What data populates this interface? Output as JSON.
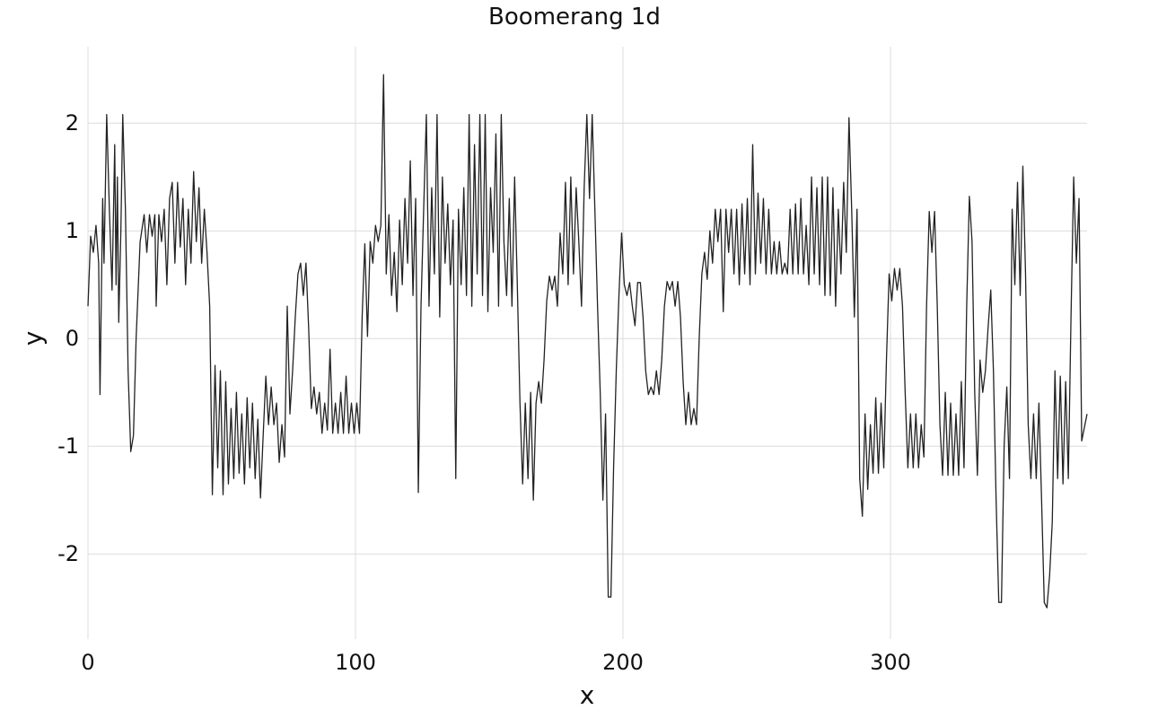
{
  "chart_data": {
    "type": "line",
    "title": "Boomerang 1d",
    "x_label": "x",
    "y_label": "y",
    "color": "#222222",
    "grid": true,
    "xlim": [
      0,
      373.5
    ],
    "ylim": [
      -2.79,
      2.71
    ],
    "xticks": [
      0,
      100,
      200,
      300
    ],
    "yticks": [
      -2,
      -1,
      0,
      1,
      2
    ],
    "x": [
      0,
      1,
      2,
      3,
      4,
      4.5,
      5.5,
      6,
      7,
      8,
      9,
      10,
      10.5,
      11,
      11.5,
      12.3,
      13,
      14,
      15,
      16,
      17,
      18,
      19.5,
      21,
      22,
      23,
      24,
      25,
      25.5,
      26.5,
      27.5,
      28.5,
      29.5,
      30.5,
      31.5,
      32.5,
      33.5,
      34.5,
      35.5,
      36.5,
      37.5,
      38.5,
      39.5,
      40.5,
      41.5,
      42.5,
      43.5,
      44.5,
      45.5,
      46.5,
      47.5,
      48.5,
      49.5,
      50.5,
      51.5,
      52.5,
      53.5,
      54.5,
      55.5,
      56.5,
      57.5,
      58.5,
      59.5,
      60.5,
      61.5,
      62.5,
      63.5,
      64.5,
      65.5,
      66.5,
      67.5,
      68.5,
      69.5,
      70.5,
      71.5,
      72.5,
      73.5,
      74.5,
      75.5,
      76.5,
      77.5,
      78.5,
      79.5,
      80.5,
      81.5,
      82.5,
      83.5,
      84.5,
      85.5,
      86.5,
      87.5,
      88.5,
      89.5,
      90.5,
      91.5,
      92.5,
      93.5,
      94.5,
      95.5,
      96.5,
      97.5,
      98.5,
      99.5,
      100.5,
      101.5,
      102.5,
      103.5,
      104.5,
      105.5,
      106.5,
      107.5,
      108.5,
      109.5,
      110.5,
      111.5,
      112.5,
      113.5,
      114.5,
      115.5,
      116.5,
      117.5,
      118.5,
      119.5,
      120.5,
      121.5,
      122.5,
      123.5,
      124.5,
      125.5,
      126.5,
      127.5,
      128.5,
      129.5,
      130.5,
      131.5,
      132.5,
      133.5,
      134.5,
      135.5,
      136.5,
      137.5,
      138.5,
      139.5,
      140.5,
      141.5,
      142.5,
      143.5,
      144.5,
      145.5,
      146.5,
      147.5,
      148.5,
      149.5,
      150.5,
      151.5,
      152.5,
      153.5,
      154.5,
      155.5,
      156.5,
      157.5,
      158.5,
      159.5,
      160.5,
      161.5,
      162.5,
      163.5,
      164.5,
      165.5,
      166.5,
      167.5,
      168.5,
      169.5,
      170.5,
      171.5,
      172.5,
      173.5,
      174.5,
      175.5,
      176.5,
      177.5,
      178.5,
      179.5,
      180.5,
      181.5,
      182.5,
      183.5,
      184.5,
      185.5,
      186.5,
      187.5,
      188.5,
      189.5,
      190.5,
      191.5,
      192.5,
      193.5,
      194.5,
      195.5,
      196.5,
      197.5,
      198.5,
      199.5,
      200.5,
      201.5,
      202.5,
      203.5,
      204.5,
      205.5,
      206.5,
      207.5,
      208.5,
      209.5,
      210.5,
      211.5,
      212.5,
      213.5,
      214.5,
      215.5,
      216.5,
      217.5,
      218.5,
      219.5,
      220.5,
      221.5,
      222.5,
      223.5,
      224.5,
      225.5,
      226.5,
      227.5,
      228.5,
      229.5,
      230.5,
      231.5,
      232.5,
      233.5,
      234.5,
      235.5,
      236.5,
      237.5,
      238.5,
      239.5,
      240.5,
      241.5,
      242.5,
      243.5,
      244.5,
      245.5,
      246.5,
      247.5,
      248.5,
      249.5,
      250.5,
      251.5,
      252.5,
      253.5,
      254.5,
      255.5,
      256.5,
      257.5,
      258.5,
      259.5,
      260.5,
      261.5,
      262.5,
      263.5,
      264.5,
      265.5,
      266.5,
      267.5,
      268.5,
      269.5,
      270.5,
      271.5,
      272.5,
      273.5,
      274.5,
      275.5,
      276.5,
      277.5,
      278.5,
      279.5,
      280.5,
      281.5,
      282.5,
      283.5,
      284.5,
      285.5,
      286.5,
      287.5,
      288.5,
      289.5,
      290.5,
      291.5,
      292.5,
      293.5,
      294.5,
      295.5,
      296.5,
      297.5,
      298.5,
      299.5,
      300.5,
      301.5,
      302.5,
      303.5,
      304.5,
      305.5,
      306.5,
      307.5,
      308.5,
      309.5,
      310.5,
      311.5,
      312.5,
      313.5,
      314.5,
      315.5,
      316.5,
      317.5,
      318.5,
      319.5,
      320.5,
      321.5,
      322.5,
      323.5,
      324.5,
      325.5,
      326.5,
      327.5,
      328.5,
      329.5,
      330.5,
      331.5,
      332.5,
      333.5,
      334.5,
      335.5,
      336.5,
      337.5,
      338.5,
      339.5,
      340.5,
      341.5,
      342.5,
      343.5,
      344.5,
      345.5,
      346.5,
      347.5,
      348.5,
      349.5,
      350.5,
      351.5,
      352.5,
      353.5,
      354.5,
      355.5,
      356.5,
      357.5,
      358.5,
      359.5,
      360.5,
      361.5,
      362.5,
      363.5,
      364.5,
      365.5,
      366.5,
      367.5,
      368.5,
      369.5,
      370.5,
      371.5,
      373.5
    ],
    "values": [
      0.3,
      0.95,
      0.8,
      1.05,
      0.7,
      -0.52,
      1.3,
      0.7,
      2.08,
      1.2,
      0.45,
      1.8,
      0.5,
      1.5,
      0.15,
      1.0,
      2.08,
      1.2,
      -0.3,
      -1.05,
      -0.9,
      0.0,
      0.9,
      1.15,
      0.8,
      1.15,
      0.95,
      1.15,
      0.3,
      1.15,
      0.9,
      1.2,
      0.5,
      1.3,
      1.45,
      0.7,
      1.45,
      0.85,
      1.3,
      0.5,
      1.2,
      0.7,
      1.55,
      0.9,
      1.4,
      0.7,
      1.2,
      0.8,
      0.3,
      -1.45,
      -0.25,
      -1.2,
      -0.3,
      -1.45,
      -0.4,
      -1.35,
      -0.65,
      -1.3,
      -0.5,
      -1.25,
      -0.7,
      -1.35,
      -0.55,
      -1.2,
      -0.6,
      -1.3,
      -0.75,
      -1.48,
      -0.9,
      -0.35,
      -0.8,
      -0.45,
      -0.8,
      -0.6,
      -1.15,
      -0.8,
      -1.1,
      0.3,
      -0.7,
      -0.3,
      0.2,
      0.6,
      0.7,
      0.4,
      0.7,
      0.1,
      -0.65,
      -0.45,
      -0.7,
      -0.5,
      -0.88,
      -0.6,
      -0.85,
      -0.1,
      -0.88,
      -0.6,
      -0.88,
      -0.5,
      -0.88,
      -0.35,
      -0.88,
      -0.6,
      -0.88,
      -0.6,
      -0.88,
      0.2,
      0.88,
      0.02,
      0.9,
      0.7,
      1.05,
      0.9,
      1.05,
      2.45,
      0.6,
      1.15,
      0.4,
      0.8,
      0.25,
      1.1,
      0.5,
      1.3,
      0.7,
      1.65,
      0.4,
      1.3,
      -1.43,
      0.3,
      1.2,
      2.08,
      0.3,
      1.4,
      0.6,
      2.08,
      0.2,
      1.5,
      0.7,
      1.25,
      0.5,
      1.1,
      -1.3,
      1.2,
      0.5,
      1.4,
      0.4,
      2.08,
      0.3,
      1.8,
      0.6,
      2.08,
      0.4,
      2.08,
      0.25,
      1.4,
      0.8,
      1.9,
      0.3,
      2.08,
      0.9,
      0.4,
      1.3,
      0.3,
      1.5,
      0.5,
      -0.6,
      -1.35,
      -0.6,
      -1.3,
      -0.5,
      -1.5,
      -0.6,
      -0.4,
      -0.6,
      -0.2,
      0.35,
      0.58,
      0.45,
      0.58,
      0.3,
      0.98,
      0.6,
      1.45,
      0.5,
      1.5,
      0.6,
      1.4,
      0.9,
      0.3,
      1.4,
      2.08,
      1.3,
      2.08,
      1.2,
      0.3,
      -0.5,
      -1.5,
      -0.7,
      -2.4,
      -2.4,
      -1.2,
      -0.3,
      0.4,
      0.98,
      0.5,
      0.4,
      0.52,
      0.3,
      0.12,
      0.52,
      0.52,
      0.2,
      -0.3,
      -0.52,
      -0.45,
      -0.52,
      -0.3,
      -0.52,
      -0.2,
      0.3,
      0.53,
      0.45,
      0.53,
      0.3,
      0.53,
      0.2,
      -0.4,
      -0.8,
      -0.5,
      -0.8,
      -0.65,
      -0.8,
      0.0,
      0.6,
      0.8,
      0.55,
      1.0,
      0.7,
      1.2,
      0.9,
      1.2,
      0.25,
      1.2,
      0.8,
      1.2,
      0.6,
      1.2,
      0.5,
      1.25,
      0.6,
      1.3,
      0.5,
      1.8,
      0.6,
      1.35,
      0.7,
      1.3,
      0.6,
      1.2,
      0.6,
      0.9,
      0.6,
      0.9,
      0.6,
      0.7,
      0.6,
      1.2,
      0.6,
      1.25,
      0.6,
      1.3,
      0.6,
      1.05,
      0.5,
      1.5,
      0.6,
      1.4,
      0.5,
      1.5,
      0.4,
      1.5,
      0.4,
      1.4,
      0.3,
      1.2,
      0.6,
      1.45,
      0.8,
      2.05,
      1.2,
      0.2,
      1.2,
      -1.3,
      -1.65,
      -0.7,
      -1.4,
      -0.8,
      -1.25,
      -0.55,
      -1.25,
      -0.6,
      -1.2,
      -0.2,
      0.6,
      0.35,
      0.65,
      0.45,
      0.65,
      0.3,
      -0.5,
      -1.2,
      -0.7,
      -1.2,
      -0.7,
      -1.2,
      -0.8,
      -1.1,
      0.3,
      1.18,
      0.8,
      1.18,
      0.3,
      -0.8,
      -1.27,
      -0.5,
      -1.27,
      -0.6,
      -1.27,
      -0.7,
      -1.27,
      -0.4,
      -1.2,
      0.3,
      1.32,
      0.9,
      -0.5,
      -1.27,
      -0.2,
      -0.5,
      -0.3,
      0.1,
      0.45,
      -0.3,
      -1.5,
      -2.45,
      -2.45,
      -1.0,
      -0.45,
      -1.3,
      1.2,
      0.5,
      1.45,
      0.4,
      1.6,
      0.6,
      -0.8,
      -1.3,
      -0.7,
      -1.3,
      -0.6,
      -1.5,
      -2.45,
      -2.5,
      -2.2,
      -1.7,
      -0.3,
      -1.3,
      -0.35,
      -1.35,
      -0.4,
      -1.3,
      0.2,
      1.5,
      0.7,
      1.3,
      -0.95,
      -0.7
    ]
  }
}
